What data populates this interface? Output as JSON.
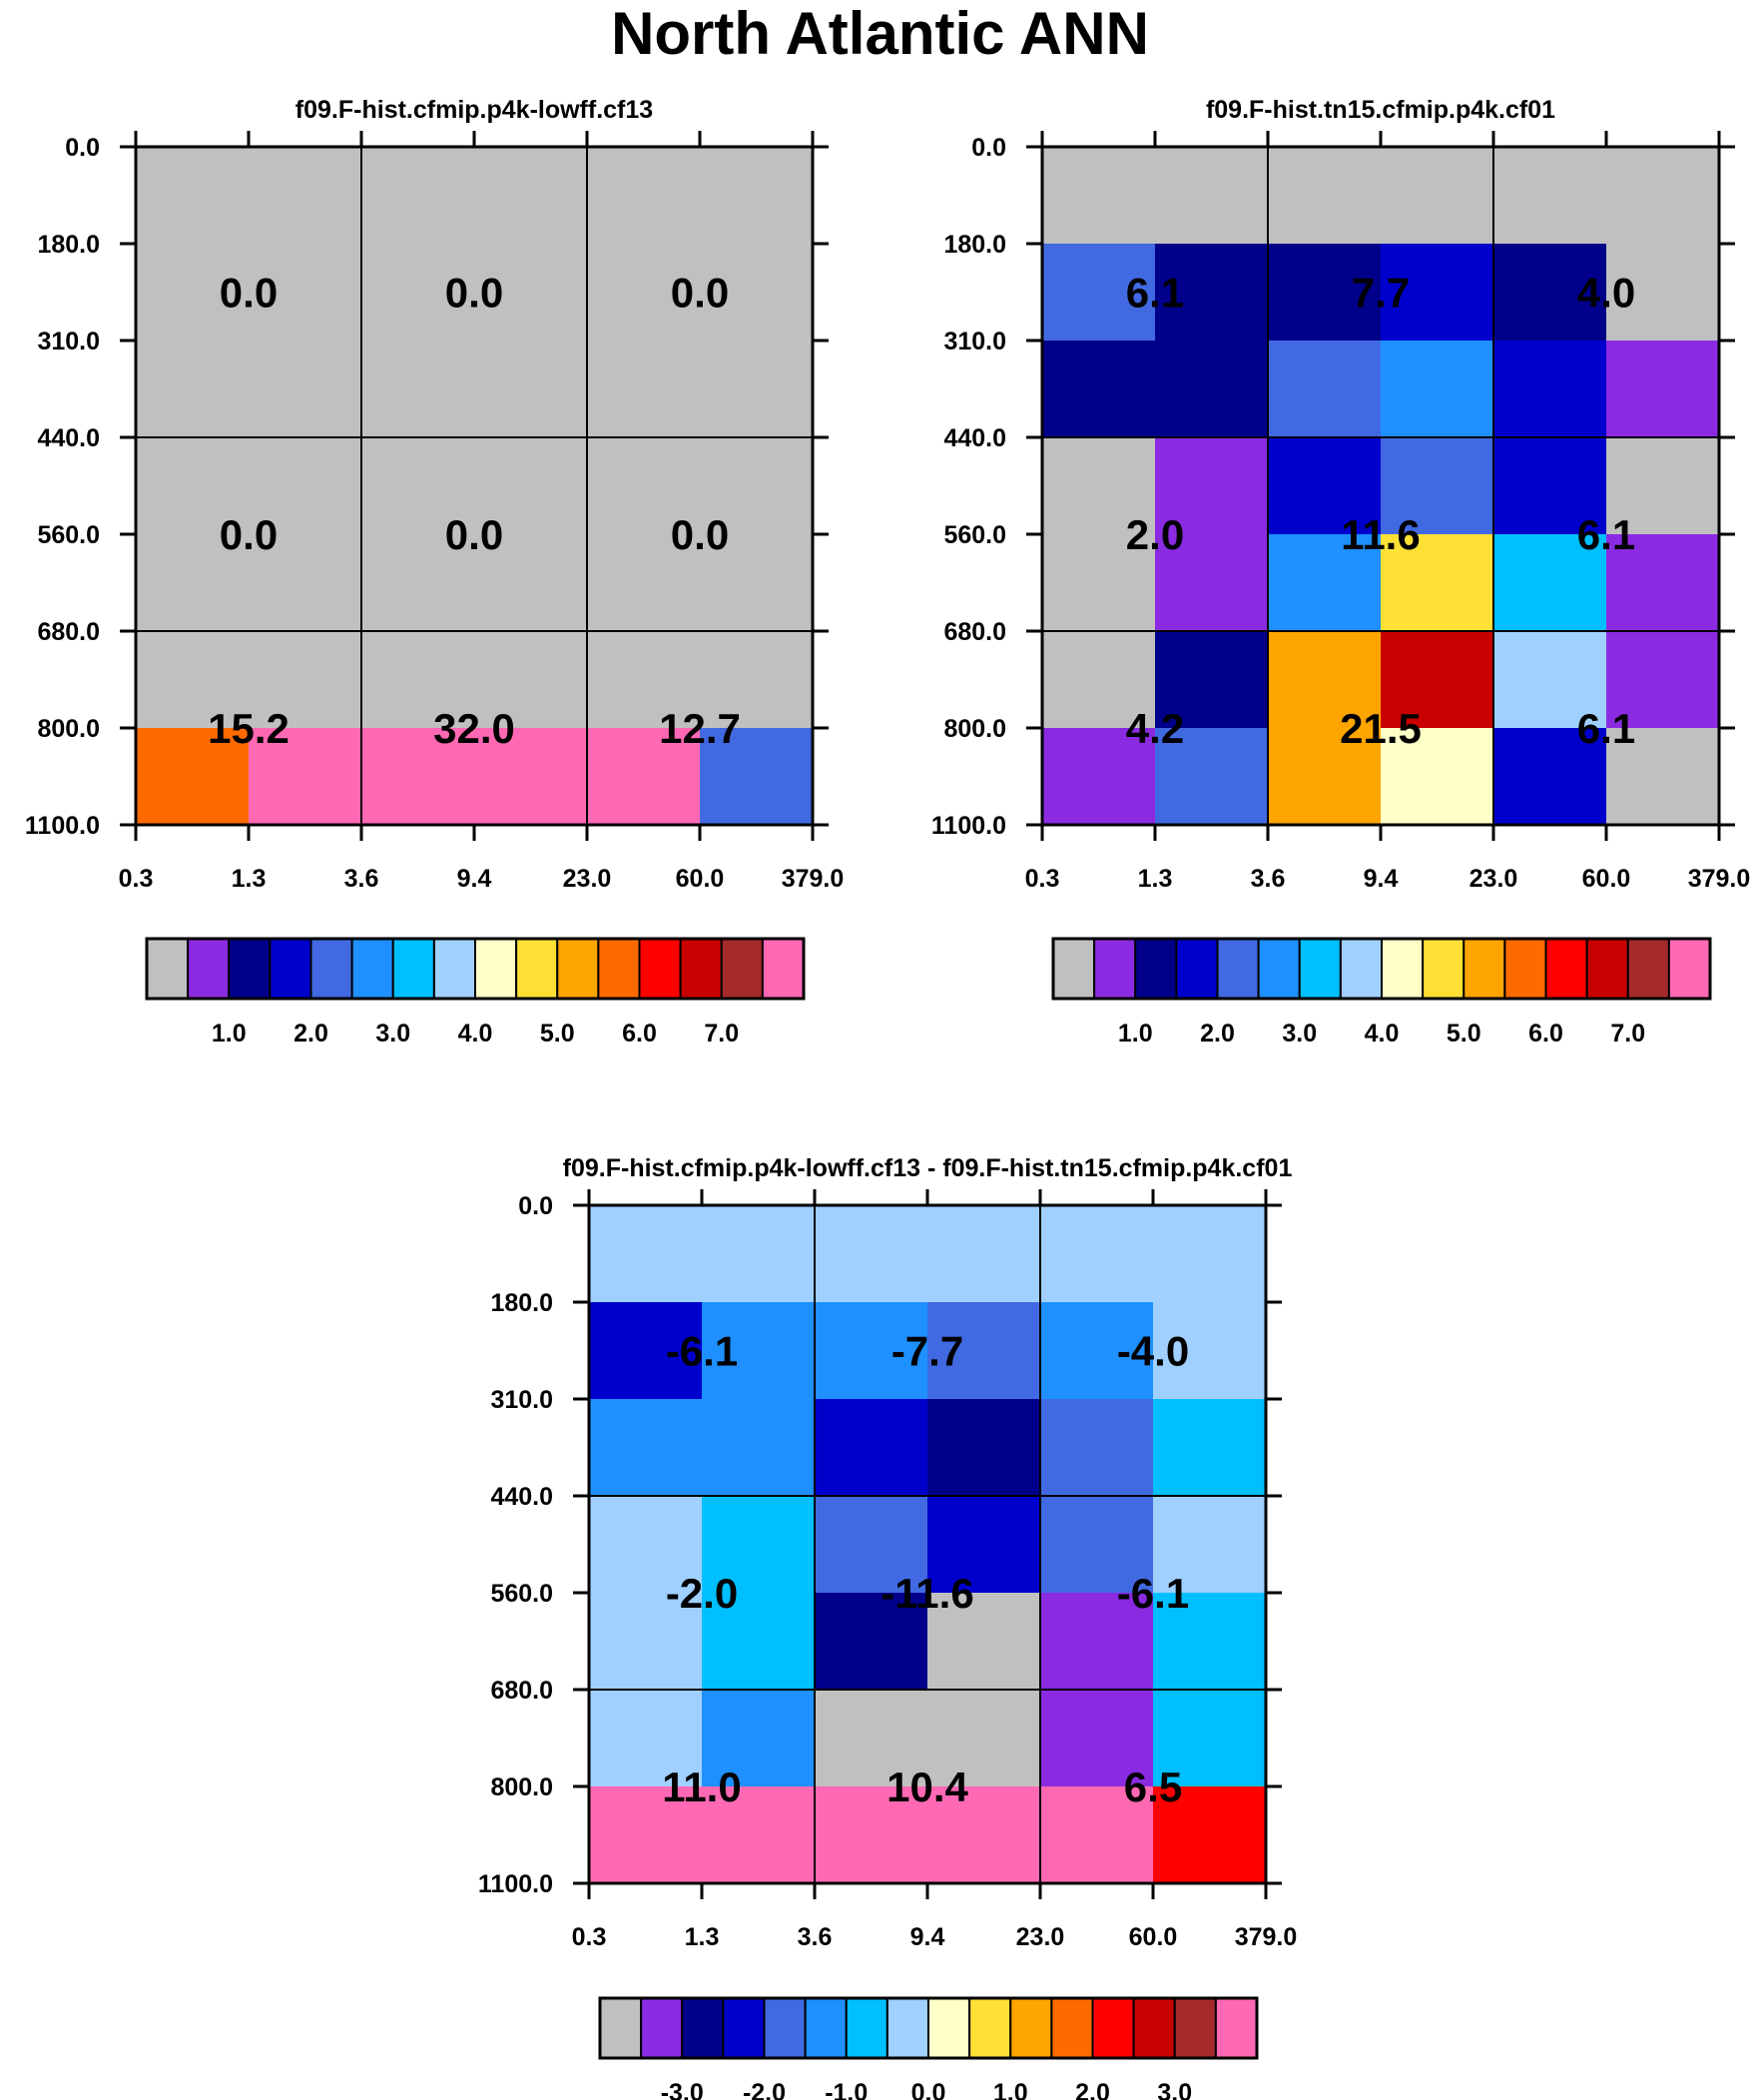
{
  "title": "North Atlantic ANN",
  "palette_colors": [
    "#c0c0c0",
    "#8a2be2",
    "#00008b",
    "#0000cd",
    "#4169e1",
    "#1e90ff",
    "#00bfff",
    "#a0d0ff",
    "#ffffc8",
    "#ffe135",
    "#ffa500",
    "#ff6a00",
    "#ff0000",
    "#c80000",
    "#a52a2a",
    "#ff69b4"
  ],
  "chart_data": [
    {
      "type": "heatmap",
      "title": "f09.F-hist.cfmip.p4k-lowff.cf13",
      "x_ticks": [
        "0.3",
        "1.3",
        "3.6",
        "9.4",
        "23.0",
        "60.0",
        "379.0"
      ],
      "y_ticks": [
        "0.0",
        "180.0",
        "310.0",
        "440.0",
        "560.0",
        "680.0",
        "800.0",
        "1100.0"
      ],
      "cells": [
        [
          0,
          0,
          0,
          0,
          0,
          0
        ],
        [
          0,
          0,
          0,
          0,
          0,
          0
        ],
        [
          0,
          0,
          0,
          0,
          0,
          0
        ],
        [
          0,
          0,
          0,
          0,
          0,
          0
        ],
        [
          0,
          0,
          0,
          0,
          0,
          0
        ],
        [
          0,
          0,
          0,
          0,
          0,
          0
        ],
        [
          11,
          15,
          15,
          15,
          15,
          4
        ]
      ],
      "group_labels": [
        [
          "0.0",
          "0.0",
          "0.0"
        ],
        [
          "0.0",
          "0.0",
          "0.0"
        ],
        [
          "15.2",
          "32.0",
          "12.7"
        ]
      ],
      "colorbar_labels": [
        "1.0",
        "2.0",
        "3.0",
        "4.0",
        "5.0",
        "6.0",
        "7.0"
      ]
    },
    {
      "type": "heatmap",
      "title": "f09.F-hist.tn15.cfmip.p4k.cf01",
      "x_ticks": [
        "0.3",
        "1.3",
        "3.6",
        "9.4",
        "23.0",
        "60.0",
        "379.0"
      ],
      "y_ticks": [
        "0.0",
        "180.0",
        "310.0",
        "440.0",
        "560.0",
        "680.0",
        "800.0",
        "1100.0"
      ],
      "cells": [
        [
          0,
          0,
          0,
          0,
          0,
          0
        ],
        [
          4,
          2,
          2,
          3,
          2,
          0
        ],
        [
          2,
          2,
          4,
          5,
          3,
          1
        ],
        [
          0,
          1,
          3,
          4,
          3,
          0
        ],
        [
          0,
          1,
          5,
          9,
          6,
          1
        ],
        [
          0,
          2,
          10,
          13,
          7,
          1
        ],
        [
          1,
          4,
          10,
          8,
          3,
          0
        ]
      ],
      "group_labels": [
        [
          "6.1",
          "7.7",
          "4.0"
        ],
        [
          "2.0",
          "11.6",
          "6.1"
        ],
        [
          "4.2",
          "21.5",
          "6.1"
        ]
      ],
      "colorbar_labels": [
        "1.0",
        "2.0",
        "3.0",
        "4.0",
        "5.0",
        "6.0",
        "7.0"
      ]
    },
    {
      "type": "heatmap",
      "title": "f09.F-hist.cfmip.p4k-lowff.cf13 - f09.F-hist.tn15.cfmip.p4k.cf01",
      "x_ticks": [
        "0.3",
        "1.3",
        "3.6",
        "9.4",
        "23.0",
        "60.0",
        "379.0"
      ],
      "y_ticks": [
        "0.0",
        "180.0",
        "310.0",
        "440.0",
        "560.0",
        "680.0",
        "800.0",
        "1100.0"
      ],
      "cells": [
        [
          7,
          7,
          7,
          7,
          7,
          7
        ],
        [
          3,
          5,
          5,
          4,
          5,
          7
        ],
        [
          5,
          5,
          3,
          2,
          4,
          6
        ],
        [
          7,
          6,
          4,
          3,
          4,
          7
        ],
        [
          7,
          6,
          2,
          0,
          1,
          6
        ],
        [
          7,
          5,
          0,
          0,
          1,
          6
        ],
        [
          15,
          15,
          15,
          15,
          15,
          12
        ]
      ],
      "group_labels": [
        [
          "-6.1",
          "-7.7",
          "-4.0"
        ],
        [
          "-2.0",
          "-11.6",
          "-6.1"
        ],
        [
          "11.0",
          "10.4",
          "6.5"
        ]
      ],
      "colorbar_labels": [
        "-3.0",
        "-2.0",
        "-1.0",
        "0.0",
        "1.0",
        "2.0",
        "3.0"
      ]
    }
  ]
}
